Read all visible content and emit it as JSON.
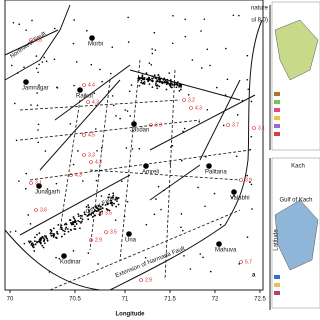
{
  "map": {
    "legend_fragments": [
      "nature",
      "ul 8.0)"
    ],
    "fault_labels": [
      "Northwest Fault",
      "Girnar Fault",
      "Extension of Narmada Fault"
    ],
    "cities": [
      "Morbi",
      "Jamnagar",
      "Rajkot",
      "Jasdan",
      "Amreli",
      "Junagarh",
      "Palitana",
      "Valabhi",
      "Una",
      "Kodinar",
      "Mahuva"
    ],
    "magnitudes": [
      4.4,
      4.3,
      3.2,
      4.3,
      3.3,
      4.5,
      3.3,
      4.3,
      4.3,
      3.1,
      3.6,
      3.9,
      3.7,
      3.1,
      3.5,
      2.9,
      3.5,
      5.7,
      2.9,
      3.3
    ],
    "x_ticks": [
      70,
      70.5,
      71,
      71.5,
      72,
      72.5
    ],
    "x_axis_label": "Longitude",
    "panel_label": "a"
  },
  "inset": {
    "labels": [
      "Kach",
      "Gulf of Kach",
      "Latitude"
    ]
  }
}
